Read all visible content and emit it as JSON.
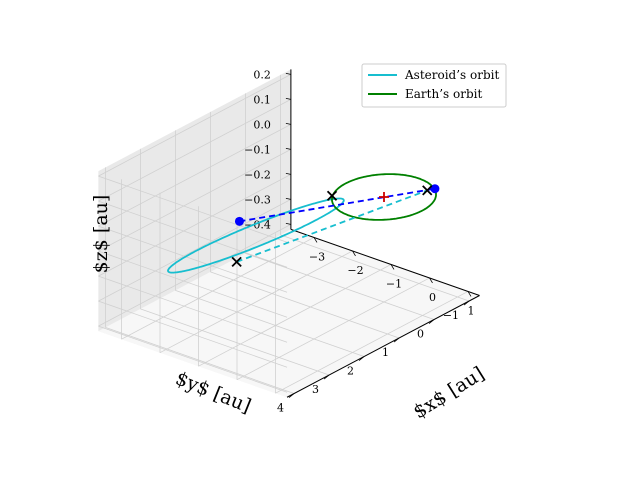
{
  "chart_data": {
    "type": "line",
    "projection": "3d",
    "xlabel": "$x$ [au]",
    "ylabel": "$y$ [au]",
    "zlabel": "$z$ [au]",
    "x_ticks": [
      "−3",
      "−2",
      "−1",
      "0",
      "1"
    ],
    "y_ticks": [
      "−1",
      "0",
      "1",
      "2",
      "3",
      "4"
    ],
    "z_ticks": [
      "−0.4",
      "−0.3",
      "−0.2",
      "−0.1",
      "0.0",
      "0.1",
      "0.2"
    ],
    "xlim": [
      -3.6,
      1.3
    ],
    "ylim": [
      -1.3,
      4.2
    ],
    "zlim": [
      -0.42,
      0.22
    ],
    "grid": true,
    "legend_position": "top-right",
    "series": [
      {
        "name": "Asteroid’s orbit",
        "color": "#17becf",
        "shape": "ellipse",
        "center": [
          -1.6,
          1.9,
          -0.1
        ],
        "axis_a": [
          2.3,
          1.5,
          0.25
        ],
        "axis_b": [
          -0.9,
          1.3,
          -0.1
        ]
      },
      {
        "name": "Earth’s orbit",
        "color": "#008000",
        "shape": "circle",
        "center": [
          0,
          0,
          0
        ],
        "radius": 1.0
      }
    ],
    "markers": [
      {
        "label": "asteroid-position",
        "symbol": "dot",
        "color": "#0000ff",
        "xyz": [
          -0.8,
          3.25,
          0.1
        ]
      },
      {
        "label": "earth-position",
        "symbol": "dot",
        "color": "#0000ff",
        "xyz": [
          0.55,
          -0.85,
          0.0
        ]
      },
      {
        "label": "sun",
        "symbol": "plus",
        "color": "#cc0000",
        "xyz": [
          0.0,
          0.0,
          0.0
        ]
      },
      {
        "label": "node-x-1",
        "symbol": "x",
        "color": "#000000",
        "xyz": [
          -0.85,
          0.55,
          0.0
        ]
      },
      {
        "label": "node-x-2",
        "symbol": "x",
        "color": "#000000",
        "xyz": [
          0.85,
          -0.3,
          0.05
        ]
      },
      {
        "label": "node-x-3",
        "symbol": "x",
        "color": "#000000",
        "xyz": [
          -2.6,
          1.35,
          -0.3
        ]
      }
    ],
    "connectors": [
      {
        "from": "asteroid-position",
        "to": "earth-position",
        "color": "#0000ff",
        "dash": true
      },
      {
        "from": "node-x-3",
        "to": "node-x-2",
        "color": "#17becf",
        "dash": true
      }
    ]
  }
}
